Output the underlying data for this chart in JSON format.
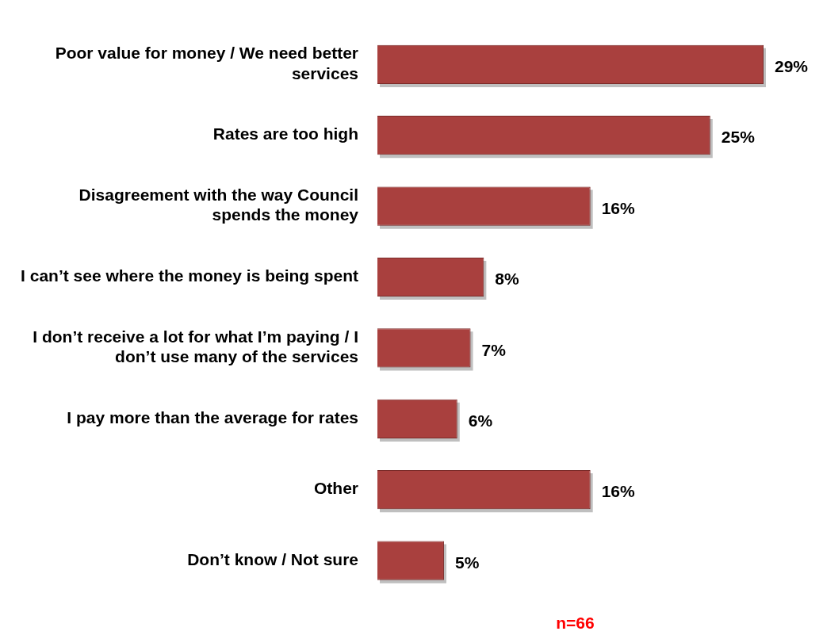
{
  "chart_data": {
    "type": "bar",
    "orientation": "horizontal",
    "categories": [
      "Poor value for money / We need better services",
      "Rates are too high",
      "Disagreement with the way Council spends the money",
      "I can’t see where the money is being spent",
      "I don’t receive a lot for what I’m paying / I don’t use many of the services",
      "I pay more than the average for rates",
      "Other",
      "Don’t know / Not sure"
    ],
    "values": [
      29,
      25,
      16,
      8,
      7,
      6,
      16,
      5
    ],
    "value_labels": [
      "29%",
      "25%",
      "16%",
      "8%",
      "7%",
      "6%",
      "16%",
      "5%"
    ],
    "color": "#a9403e",
    "annotations": [
      "n=66"
    ],
    "legend": false,
    "grid": false
  }
}
